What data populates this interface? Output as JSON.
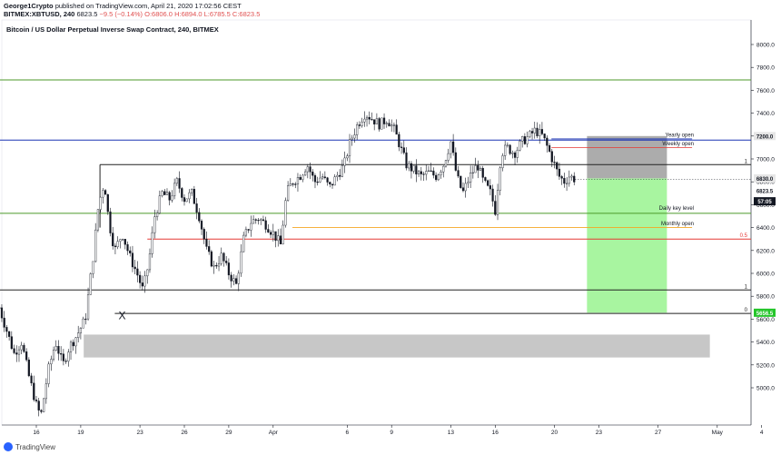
{
  "header": {
    "author": "George1Crypto",
    "published_text": "published on TradingView.com, April 21, 2020 17:02:56 CEST",
    "symbol_line": "BITMEX:XBTUSD, 240",
    "last_price": "6823.5",
    "change": "−9.5 (−0.14%)",
    "ohlc_o": "O:6806.0",
    "ohlc_h": "H:6894.0",
    "ohlc_l": "L:6785.5",
    "ohlc_c": "C:6823.5"
  },
  "footer": {
    "brand": "TradingView"
  },
  "chart_data": {
    "type": "candlestick",
    "title": "Bitcoin / US Dollar Perpetual Inverse Swap Contract, 240, BITMEX",
    "ylim": [
      4700,
      8150
    ],
    "y_ticks": [
      5000,
      5200,
      5400,
      5600,
      5800,
      6000,
      6200,
      6400,
      6600,
      6800,
      7000,
      7200,
      7400,
      7600,
      7800,
      8000
    ],
    "y_tick_labels": [
      "5000.0",
      "5200.0",
      "5400.0",
      "5600.0",
      "5800.0",
      "6000.0",
      "6200.0",
      "6400.0",
      "6600.0",
      "6800.0",
      "7000.0",
      "7200.0",
      "7400.0",
      "7600.0",
      "7800.0",
      "8000.0"
    ],
    "x_ticks": [
      {
        "day": 16,
        "label": "16"
      },
      {
        "day": 19,
        "label": "19"
      },
      {
        "day": 23,
        "label": "23"
      },
      {
        "day": 26,
        "label": "26"
      },
      {
        "day": 29,
        "label": "29"
      },
      {
        "day": 32,
        "label": "Apr"
      },
      {
        "day": 37,
        "label": "6"
      },
      {
        "day": 40,
        "label": "9"
      },
      {
        "day": 44,
        "label": "13"
      },
      {
        "day": 47,
        "label": "16"
      },
      {
        "day": 51,
        "label": "20"
      },
      {
        "day": 54,
        "label": "23"
      },
      {
        "day": 58,
        "label": "27"
      },
      {
        "day": 62,
        "label": "May"
      },
      {
        "day": 65,
        "label": "4"
      }
    ],
    "price_path": [
      [
        13.5,
        5700
      ],
      [
        14,
        5500
      ],
      [
        14.5,
        5300
      ],
      [
        15,
        5400
      ],
      [
        15.5,
        5100
      ],
      [
        16,
        4850
      ],
      [
        16.3,
        4750
      ],
      [
        16.8,
        5150
      ],
      [
        17.3,
        5400
      ],
      [
        17.8,
        5200
      ],
      [
        18.2,
        5350
      ],
      [
        18.7,
        5450
      ],
      [
        19.3,
        5600
      ],
      [
        19.8,
        6100
      ],
      [
        20.2,
        6600
      ],
      [
        20.6,
        6800
      ],
      [
        20.9,
        6450
      ],
      [
        21.3,
        6200
      ],
      [
        21.8,
        6350
      ],
      [
        22.3,
        6150
      ],
      [
        22.8,
        6000
      ],
      [
        23.2,
        5850
      ],
      [
        23.6,
        6100
      ],
      [
        24,
        6500
      ],
      [
        24.5,
        6700
      ],
      [
        25,
        6650
      ],
      [
        25.5,
        6800
      ],
      [
        26,
        6650
      ],
      [
        26.5,
        6700
      ],
      [
        27,
        6500
      ],
      [
        27.5,
        6200
      ],
      [
        28,
        6050
      ],
      [
        28.5,
        6150
      ],
      [
        29,
        6000
      ],
      [
        29.5,
        5900
      ],
      [
        30,
        6300
      ],
      [
        30.5,
        6450
      ],
      [
        31,
        6480
      ],
      [
        31.5,
        6430
      ],
      [
        32,
        6350
      ],
      [
        32.5,
        6250
      ],
      [
        32.9,
        6700
      ],
      [
        33.3,
        6800
      ],
      [
        33.8,
        6850
      ],
      [
        34.3,
        6950
      ],
      [
        34.8,
        6800
      ],
      [
        35.3,
        6850
      ],
      [
        35.8,
        6750
      ],
      [
        36.3,
        6850
      ],
      [
        36.8,
        6950
      ],
      [
        37.2,
        7150
      ],
      [
        37.7,
        7300
      ],
      [
        38.2,
        7400
      ],
      [
        38.7,
        7350
      ],
      [
        39.2,
        7300
      ],
      [
        39.7,
        7350
      ],
      [
        40.2,
        7250
      ],
      [
        40.6,
        7100
      ],
      [
        41,
        6950
      ],
      [
        41.5,
        6900
      ],
      [
        42,
        6850
      ],
      [
        42.5,
        6880
      ],
      [
        43,
        6850
      ],
      [
        43.5,
        6950
      ],
      [
        44,
        7150
      ],
      [
        44.4,
        6850
      ],
      [
        44.8,
        6700
      ],
      [
        45.3,
        6850
      ],
      [
        45.8,
        6950
      ],
      [
        46.2,
        6800
      ],
      [
        46.7,
        6700
      ],
      [
        47,
        6550
      ],
      [
        47.4,
        7050
      ],
      [
        47.8,
        7100
      ],
      [
        48.3,
        7050
      ],
      [
        48.8,
        7150
      ],
      [
        49.3,
        7200
      ],
      [
        49.7,
        7250
      ],
      [
        50.2,
        7200
      ],
      [
        50.7,
        7050
      ],
      [
        51,
        6950
      ],
      [
        51.3,
        6850
      ],
      [
        51.7,
        6800
      ],
      [
        52,
        6850
      ],
      [
        52.4,
        6823
      ]
    ],
    "horizontal_lines": [
      {
        "y": 7690,
        "color": "#4c9a2a",
        "from_day": 13.5,
        "label": ""
      },
      {
        "y": 7165,
        "color": "#1a33b3",
        "from_day": 13.5,
        "label": ""
      },
      {
        "y": 6950,
        "color": "#222222",
        "from_day": 20.3,
        "label": "1"
      },
      {
        "y": 6525,
        "color": "#4c9a2a",
        "from_day": 13.5,
        "label": ""
      },
      {
        "y": 6300,
        "color": "#e53935",
        "from_day": 23.5,
        "label": "0.5"
      },
      {
        "y": 5855,
        "color": "#222222",
        "from_day": 13.5,
        "label": "1"
      },
      {
        "y": 5650,
        "color": "#222222",
        "from_day": 21.3,
        "label": "0"
      }
    ],
    "annotations": [
      {
        "text": "Yearly open",
        "y": 7195,
        "start_day": 50.8,
        "end_day": 60.3,
        "color": "#1a33b3"
      },
      {
        "text": "Weekly open",
        "y": 7120,
        "start_day": 50.8,
        "end_day": 60.3,
        "color": "#e53935"
      },
      {
        "text": "Daily key level",
        "y": 6555,
        "start_day": null,
        "end_day": null,
        "color": null
      },
      {
        "text": "Monthly open",
        "y": 6420,
        "start_day": 33.3,
        "end_day": 60.3,
        "color": "#f5a623"
      }
    ],
    "position": {
      "entry": 6830,
      "stop": 7200,
      "target": 5656,
      "start_day": 53.2,
      "end_day": 58.6,
      "stop_color": "#9e9e9e",
      "target_color": "#a8f5a0"
    },
    "zone": {
      "y_top": 5465,
      "y_bottom": 5265,
      "start_day": 19.2,
      "end_day": 61.5,
      "color": "#c7c7c7"
    },
    "marker": {
      "text": "X",
      "day": 21.8,
      "y": 5600
    },
    "price_badges": [
      {
        "label": "7200.0",
        "y": 7200,
        "bg": "#e6e6e6",
        "fg": "#131722"
      },
      {
        "label": "6830.0",
        "y": 6830,
        "bg": "#e6e6e6",
        "fg": "#131722"
      },
      {
        "label": "6823.5",
        "y": 6723,
        "bg": "#ffffff",
        "fg": "#131722"
      },
      {
        "label": "57:05",
        "y": 6630,
        "bg": "#131722",
        "fg": "#ffffff"
      },
      {
        "label": "5656.5",
        "y": 5656,
        "bg": "#25c52b",
        "fg": "#ffffff"
      }
    ]
  }
}
